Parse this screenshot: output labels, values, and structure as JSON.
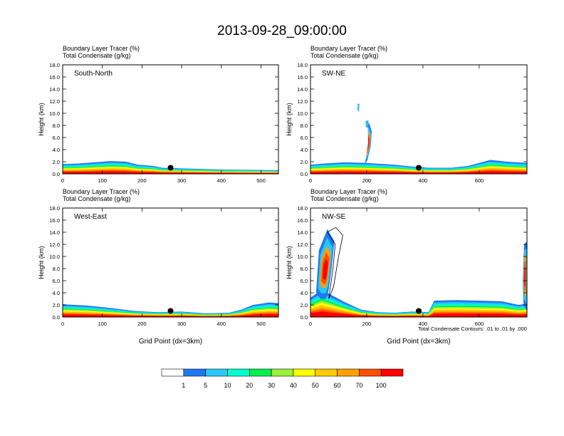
{
  "figure_title": "2013-09-28_09:00:00",
  "panel_label_line1": "Boundary Layer Tracer   (%)",
  "panel_label_line2": "Total Condensate   (g/kg)",
  "ylabel": "Height (km)",
  "xlabel": "Grid Point (dx=3km)",
  "contour_note": "Total Condensate Contours: .01 to .01 by .000",
  "colorbar": {
    "levels": [
      "1",
      "5",
      "10",
      "20",
      "30",
      "40",
      "50",
      "60",
      "70",
      "100"
    ],
    "colors": [
      "#ffffff",
      "#1e78f5",
      "#28c8ff",
      "#00ffcc",
      "#00f050",
      "#9bf03c",
      "#ffff00",
      "#ffcc00",
      "#ffa000",
      "#ff5000",
      "#ff0000"
    ]
  },
  "chart_data": [
    {
      "type": "heatmap",
      "name": "South-North",
      "title": "South-North",
      "xlim": [
        0,
        544
      ],
      "ylim": [
        0,
        18
      ],
      "xticks": [
        0,
        100,
        200,
        300,
        400,
        500
      ],
      "yticks": [
        0,
        2,
        4,
        6,
        8,
        10,
        12,
        14,
        16,
        18
      ],
      "ytick_labels": [
        "0.0",
        "2.0",
        "4.0",
        "6.0",
        "8.0",
        "10.0",
        "12.0",
        "14.0",
        "16.0",
        "18.0"
      ],
      "marker": {
        "x": 272,
        "y": 1.0
      },
      "boundary_layer_top_km": [
        [
          0,
          1.6
        ],
        [
          40,
          1.7
        ],
        [
          80,
          1.9
        ],
        [
          120,
          2.1
        ],
        [
          160,
          2.0
        ],
        [
          190,
          1.5
        ],
        [
          230,
          1.3
        ],
        [
          250,
          1.0
        ],
        [
          300,
          0.9
        ],
        [
          400,
          0.7
        ],
        [
          544,
          0.6
        ]
      ],
      "plumes": []
    },
    {
      "type": "heatmap",
      "name": "SW-NE",
      "title": "SW-NE",
      "xlim": [
        0,
        770
      ],
      "ylim": [
        0,
        18
      ],
      "xticks": [
        0,
        200,
        400,
        600
      ],
      "yticks": [
        0,
        2,
        4,
        6,
        8,
        10,
        12,
        14,
        16,
        18
      ],
      "ytick_labels": [
        "0.0",
        "2.0",
        "4.0",
        "6.0",
        "8.0",
        "10.0",
        "12.0",
        "14.0",
        "16.0",
        "18.0"
      ],
      "marker": {
        "x": 385,
        "y": 1.0
      },
      "boundary_layer_top_km": [
        [
          0,
          1.5
        ],
        [
          50,
          1.7
        ],
        [
          120,
          1.9
        ],
        [
          200,
          1.8
        ],
        [
          300,
          1.5
        ],
        [
          360,
          1.2
        ],
        [
          420,
          1.0
        ],
        [
          500,
          1.0
        ],
        [
          560,
          1.3
        ],
        [
          640,
          2.3
        ],
        [
          700,
          2.0
        ],
        [
          770,
          1.8
        ]
      ],
      "plumes": [
        {
          "points": [
            [
              208,
              8.5
            ],
            [
              218,
              7.0
            ],
            [
              214,
              4.5
            ],
            [
              202,
              2.2
            ],
            [
              192,
              1.5
            ],
            [
              198,
              2.6
            ],
            [
              206,
              5.5
            ],
            [
              204,
              7.8
            ]
          ]
        },
        {
          "points": [
            [
              196,
              8.7
            ],
            [
              206,
              8.8
            ],
            [
              205,
              7.6
            ],
            [
              197,
              7.8
            ]
          ]
        },
        {
          "points": [
            [
              168,
              11.5
            ],
            [
              174,
              11.6
            ],
            [
              172,
              10.3
            ],
            [
              167,
              10.6
            ]
          ]
        }
      ]
    },
    {
      "type": "heatmap",
      "name": "West-East",
      "title": "West-East",
      "xlim": [
        0,
        544
      ],
      "ylim": [
        0,
        18
      ],
      "xticks": [
        0,
        100,
        200,
        300,
        400,
        500
      ],
      "yticks": [
        0,
        2,
        4,
        6,
        8,
        10,
        12,
        14,
        16,
        18
      ],
      "ytick_labels": [
        "0.0",
        "2.0",
        "4.0",
        "6.0",
        "8.0",
        "10.0",
        "12.0",
        "14.0",
        "16.0",
        "18.0"
      ],
      "marker": {
        "x": 272,
        "y": 1.0
      },
      "boundary_layer_top_km": [
        [
          0,
          2.1
        ],
        [
          60,
          1.9
        ],
        [
          120,
          1.5
        ],
        [
          180,
          1.0
        ],
        [
          240,
          0.8
        ],
        [
          300,
          0.9
        ],
        [
          360,
          0.6
        ],
        [
          420,
          0.7
        ],
        [
          450,
          1.2
        ],
        [
          480,
          2.0
        ],
        [
          520,
          2.4
        ],
        [
          544,
          2.3
        ]
      ],
      "plumes": []
    },
    {
      "type": "heatmap",
      "name": "NW-SE",
      "title": "NW-SE",
      "xlim": [
        0,
        770
      ],
      "ylim": [
        0,
        18
      ],
      "xticks": [
        0,
        200,
        400,
        600
      ],
      "yticks": [
        0,
        2,
        4,
        6,
        8,
        10,
        12,
        14,
        16,
        18
      ],
      "ytick_labels": [
        "0.0",
        "2.0",
        "4.0",
        "6.0",
        "8.0",
        "10.0",
        "12.0",
        "14.0",
        "16.0",
        "18.0"
      ],
      "marker": {
        "x": 385,
        "y": 1.0
      },
      "boundary_layer_top_km": [
        [
          0,
          3.2
        ],
        [
          40,
          4.5
        ],
        [
          80,
          3.5
        ],
        [
          120,
          2.5
        ],
        [
          180,
          1.2
        ],
        [
          240,
          0.8
        ],
        [
          300,
          0.7
        ],
        [
          360,
          0.9
        ],
        [
          420,
          0.8
        ],
        [
          440,
          2.7
        ],
        [
          520,
          2.8
        ],
        [
          600,
          2.7
        ],
        [
          680,
          2.6
        ],
        [
          740,
          2.0
        ],
        [
          770,
          2.2
        ]
      ],
      "plumes": [
        {
          "points": [
            [
              20,
              4.0
            ],
            [
              30,
              11.0
            ],
            [
              60,
              14.5
            ],
            [
              85,
              12.5
            ],
            [
              75,
              8.0
            ],
            [
              65,
              4.5
            ],
            [
              55,
              3.0
            ],
            [
              35,
              3.0
            ]
          ]
        },
        {
          "points": [
            [
              760,
              12.0
            ],
            [
              770,
              12.5
            ],
            [
              770,
              1.0
            ],
            [
              758,
              2.0
            ],
            [
              755,
              6.0
            ]
          ]
        }
      ],
      "contours": [
        {
          "points": [
            [
              60,
              14.0
            ],
            [
              90,
              14.8
            ],
            [
              115,
              13.5
            ],
            [
              100,
              10.0
            ],
            [
              82,
              5.0
            ],
            [
              65,
              3.0
            ],
            [
              80,
              8.0
            ],
            [
              88,
              12.0
            ]
          ]
        }
      ]
    }
  ]
}
